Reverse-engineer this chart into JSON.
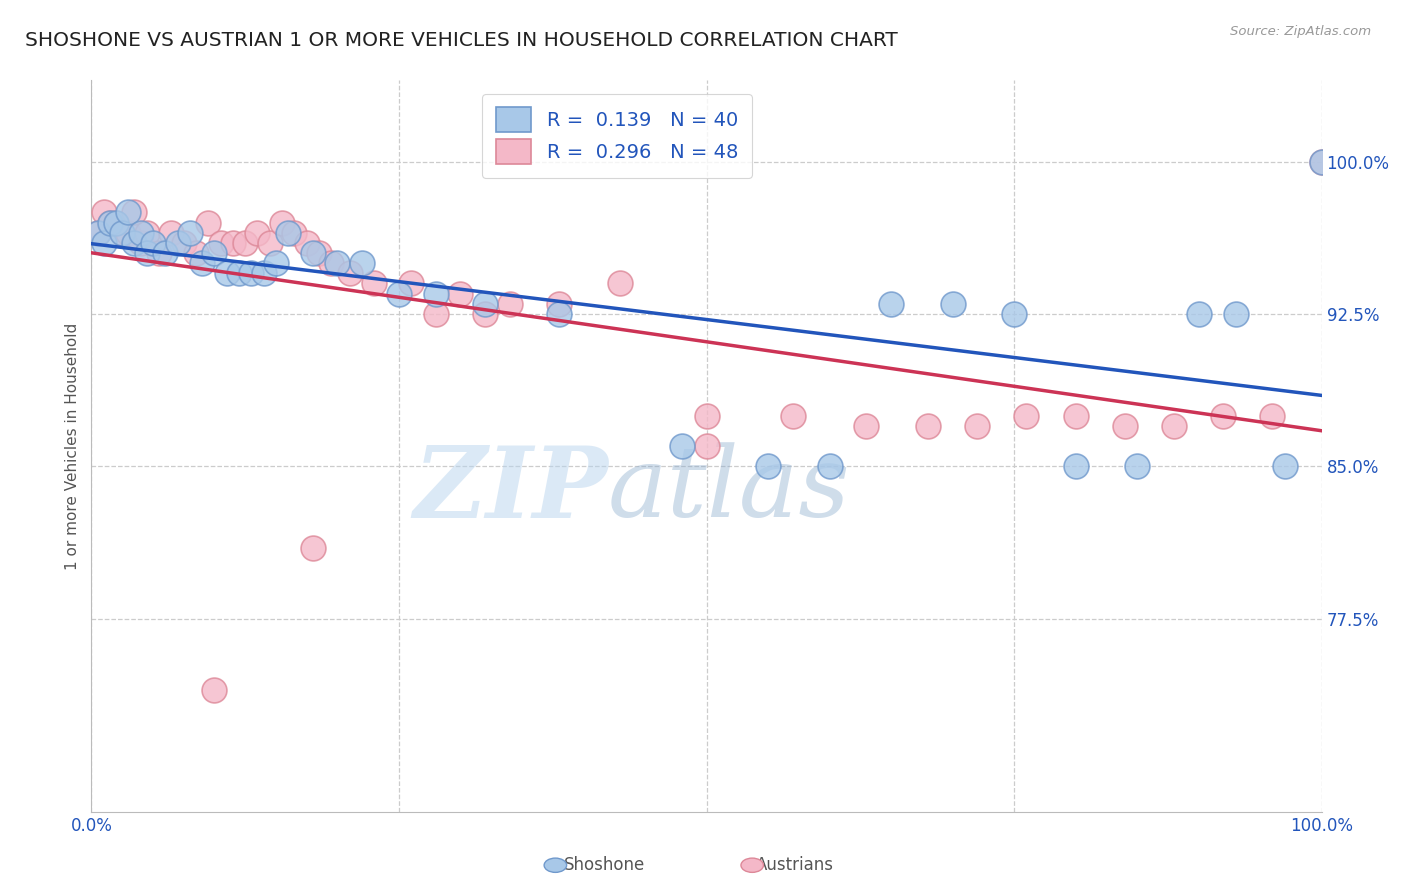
{
  "title": "SHOSHONE VS AUSTRIAN 1 OR MORE VEHICLES IN HOUSEHOLD CORRELATION CHART",
  "source_text": "Source: ZipAtlas.com",
  "ylabel": "1 or more Vehicles in Household",
  "xlim": [
    0.0,
    1.0
  ],
  "ylim": [
    0.68,
    1.04
  ],
  "xticks": [
    0.0,
    0.25,
    0.5,
    0.75,
    1.0
  ],
  "yticks": [
    0.775,
    0.85,
    0.925,
    1.0
  ],
  "watermark_zip": "ZIP",
  "watermark_atlas": "atlas",
  "legend_items": [
    {
      "label": "Shoshone",
      "color": "#a8c8e8",
      "edge": "#7099cc",
      "R": 0.139,
      "N": 40
    },
    {
      "label": "Austrians",
      "color": "#f4b8c8",
      "edge": "#dd8898",
      "R": 0.296,
      "N": 48
    }
  ],
  "shoshone_x": [
    0.005,
    0.01,
    0.015,
    0.02,
    0.025,
    0.03,
    0.035,
    0.04,
    0.045,
    0.05,
    0.06,
    0.07,
    0.08,
    0.09,
    0.1,
    0.11,
    0.12,
    0.13,
    0.14,
    0.15,
    0.16,
    0.18,
    0.2,
    0.22,
    0.25,
    0.28,
    0.32,
    0.38,
    0.48,
    0.55,
    0.6,
    0.65,
    0.7,
    0.75,
    0.8,
    0.85,
    0.9,
    0.93,
    0.97,
    1.0
  ],
  "shoshone_y": [
    0.965,
    0.96,
    0.97,
    0.97,
    0.965,
    0.975,
    0.96,
    0.965,
    0.955,
    0.96,
    0.955,
    0.96,
    0.965,
    0.95,
    0.955,
    0.945,
    0.945,
    0.945,
    0.945,
    0.95,
    0.965,
    0.955,
    0.95,
    0.95,
    0.935,
    0.935,
    0.93,
    0.925,
    0.86,
    0.85,
    0.85,
    0.93,
    0.93,
    0.925,
    0.85,
    0.85,
    0.925,
    0.925,
    0.85,
    1.0
  ],
  "austrian_x": [
    0.005,
    0.01,
    0.015,
    0.02,
    0.025,
    0.03,
    0.035,
    0.04,
    0.045,
    0.055,
    0.065,
    0.075,
    0.085,
    0.095,
    0.105,
    0.115,
    0.125,
    0.135,
    0.145,
    0.155,
    0.165,
    0.175,
    0.185,
    0.195,
    0.21,
    0.23,
    0.26,
    0.3,
    0.34,
    0.38,
    0.43,
    0.5,
    0.57,
    0.63,
    0.68,
    0.72,
    0.76,
    0.8,
    0.84,
    0.88,
    0.92,
    0.96,
    1.0,
    0.28,
    0.32,
    0.5,
    0.18,
    0.1
  ],
  "austrian_y": [
    0.965,
    0.975,
    0.97,
    0.97,
    0.965,
    0.965,
    0.975,
    0.96,
    0.965,
    0.955,
    0.965,
    0.96,
    0.955,
    0.97,
    0.96,
    0.96,
    0.96,
    0.965,
    0.96,
    0.97,
    0.965,
    0.96,
    0.955,
    0.95,
    0.945,
    0.94,
    0.94,
    0.935,
    0.93,
    0.93,
    0.94,
    0.875,
    0.875,
    0.87,
    0.87,
    0.87,
    0.875,
    0.875,
    0.87,
    0.87,
    0.875,
    0.875,
    1.0,
    0.925,
    0.925,
    0.86,
    0.81,
    0.74
  ],
  "blue_line_color": "#2255bb",
  "pink_line_color": "#cc3355",
  "grid_color": "#cccccc",
  "background_color": "#ffffff",
  "title_color": "#222222",
  "axis_label_color": "#555555",
  "tick_color": "#2255bb"
}
